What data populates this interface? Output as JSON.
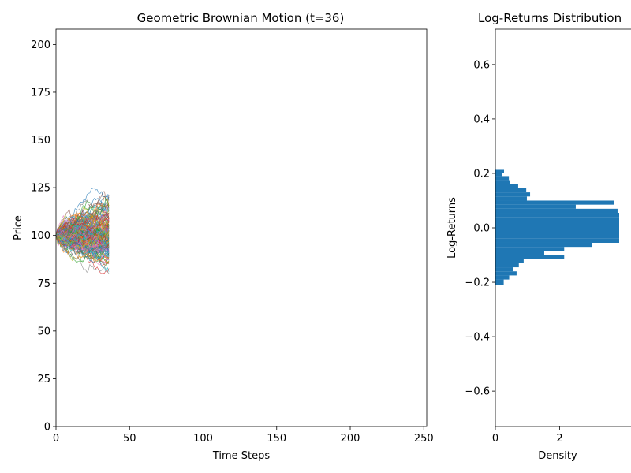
{
  "chart_data": [
    {
      "type": "line",
      "title": "Geometric Brownian Motion (t=36)",
      "xlabel": "Time Steps",
      "ylabel": "Price",
      "xlim": [
        0,
        252
      ],
      "ylim": [
        0,
        208
      ],
      "xticks": [
        0,
        50,
        100,
        150,
        200,
        250
      ],
      "yticks": [
        0,
        25,
        50,
        75,
        100,
        125,
        150,
        175,
        200
      ],
      "start_price": 100,
      "visible_steps": 36,
      "observed_price_range": [
        80,
        125
      ],
      "n_paths_approx": 200,
      "series_colors": [
        "#1f77b4",
        "#ff7f0e",
        "#2ca02c",
        "#d62728",
        "#9467bd",
        "#8c564b",
        "#e377c2",
        "#7f7f7f",
        "#bcbd22",
        "#17becf"
      ],
      "grid": false,
      "legend": "none"
    },
    {
      "type": "bar",
      "orientation": "horizontal",
      "title": "Log-Returns Distribution",
      "xlabel": "Density",
      "ylabel": "Log-Returns",
      "xlim": [
        0,
        3.85
      ],
      "ylim": [
        -0.73,
        0.73
      ],
      "xticks": [
        0,
        2
      ],
      "yticks": [
        -0.6,
        -0.4,
        -0.2,
        0.0,
        0.2,
        0.4,
        0.6
      ],
      "ytick_labels": [
        "−0.6",
        "−0.4",
        "−0.2",
        "0.0",
        "0.2",
        "0.4",
        "0.6"
      ],
      "color": "#1f77b4",
      "bins": [
        {
          "lo": -0.21,
          "hi": -0.19,
          "density": 0.26
        },
        {
          "lo": -0.19,
          "hi": -0.175,
          "density": 0.43
        },
        {
          "lo": -0.175,
          "hi": -0.16,
          "density": 0.66
        },
        {
          "lo": -0.16,
          "hi": -0.145,
          "density": 0.54
        },
        {
          "lo": -0.145,
          "hi": -0.13,
          "density": 0.73
        },
        {
          "lo": -0.13,
          "hi": -0.115,
          "density": 0.88
        },
        {
          "lo": -0.115,
          "hi": -0.1,
          "density": 2.14
        },
        {
          "lo": -0.1,
          "hi": -0.085,
          "density": 1.52
        },
        {
          "lo": -0.085,
          "hi": -0.07,
          "density": 2.14
        },
        {
          "lo": -0.07,
          "hi": -0.055,
          "density": 3.0
        },
        {
          "lo": -0.055,
          "hi": -0.04,
          "density": 3.85
        },
        {
          "lo": -0.04,
          "hi": 0.04,
          "density": 3.85
        },
        {
          "lo": 0.04,
          "hi": 0.055,
          "density": 3.85
        },
        {
          "lo": 0.055,
          "hi": 0.07,
          "density": 3.8
        },
        {
          "lo": 0.07,
          "hi": 0.085,
          "density": 2.5
        },
        {
          "lo": 0.085,
          "hi": 0.1,
          "density": 3.7
        },
        {
          "lo": 0.1,
          "hi": 0.115,
          "density": 0.98
        },
        {
          "lo": 0.115,
          "hi": 0.13,
          "density": 1.08
        },
        {
          "lo": 0.13,
          "hi": 0.145,
          "density": 0.96
        },
        {
          "lo": 0.145,
          "hi": 0.16,
          "density": 0.71
        },
        {
          "lo": 0.16,
          "hi": 0.175,
          "density": 0.45
        },
        {
          "lo": 0.175,
          "hi": 0.19,
          "density": 0.42
        },
        {
          "lo": 0.19,
          "hi": 0.2,
          "density": 0.2
        },
        {
          "lo": 0.2,
          "hi": 0.213,
          "density": 0.27
        }
      ],
      "grid": false,
      "legend": "none"
    }
  ]
}
